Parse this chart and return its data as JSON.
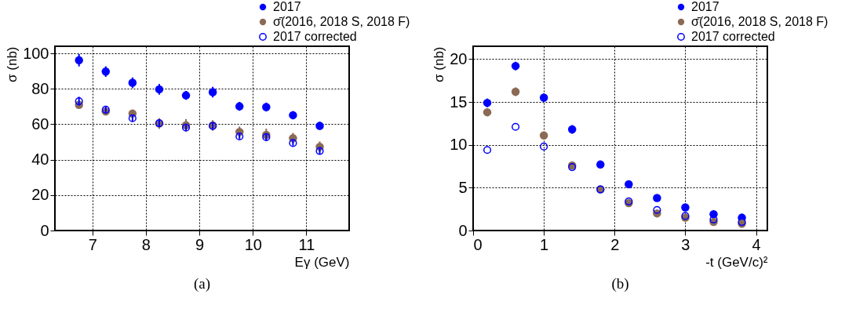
{
  "chart_data": [
    {
      "type": "scatter",
      "xlabel": "Eγ (GeV)",
      "ylabel": "σ (nb)",
      "xlim": [
        6.3,
        11.8
      ],
      "ylim": [
        0,
        104
      ],
      "xticks": [
        7,
        8,
        9,
        10,
        11
      ],
      "yticks": [
        0,
        20,
        40,
        60,
        80,
        100
      ],
      "grid": true,
      "legend": "top right",
      "marker": "circle",
      "annotations": [
        "(a)"
      ],
      "x": [
        6.75,
        7.25,
        7.75,
        8.25,
        8.75,
        9.25,
        9.75,
        10.25,
        10.75,
        11.25
      ],
      "series": [
        {
          "name": "2017",
          "color": "#0000ff",
          "values": [
            96.1,
            89.7,
            83.4,
            79.7,
            76.3,
            78.1,
            70.1,
            69.7,
            65.1,
            59.1
          ],
          "errors": [
            3.5,
            3,
            3,
            3,
            2.5,
            3,
            2.5,
            2.5,
            2.3,
            2.3
          ]
        },
        {
          "name": "σ̄(2016, 2018 S, 2018 F)",
          "color": "#8b6a55",
          "values": [
            70.9,
            67.2,
            66.0,
            60.4,
            59.4,
            59.3,
            55.7,
            54.0,
            52.1,
            47.3
          ],
          "errors": [
            1,
            2,
            1,
            3,
            3.5,
            3,
            3,
            3.5,
            3,
            3
          ]
        },
        {
          "name": "2017 corrected",
          "color": "#0000ff",
          "marker": "circle-open",
          "values": [
            73.0,
            68.2,
            63.4,
            60.6,
            58.1,
            59.0,
            53.1,
            52.7,
            49.4,
            44.9
          ],
          "errors": [
            2.5,
            2,
            2,
            2,
            1.5,
            2,
            1.5,
            2,
            1.5,
            1.5
          ]
        }
      ]
    },
    {
      "type": "scatter",
      "xlabel": "-t (GeV/c)²",
      "ylabel": "σ (nb)",
      "xlim": [
        0,
        4.16
      ],
      "ylim": [
        0,
        21.5
      ],
      "xticks": [
        0,
        1,
        2,
        3,
        4
      ],
      "yticks": [
        0,
        5,
        10,
        15,
        20
      ],
      "grid": true,
      "legend": "top right",
      "marker": "circle",
      "annotations": [
        "(b)"
      ],
      "x": [
        0.2,
        0.6,
        1.0,
        1.4,
        1.8,
        2.2,
        2.6,
        3.0,
        3.4,
        3.8
      ],
      "series": [
        {
          "name": "2017",
          "color": "#0000ff",
          "values": [
            14.9,
            19.2,
            15.5,
            11.8,
            7.7,
            5.4,
            3.8,
            2.7,
            1.9,
            1.5
          ],
          "errors": [
            0.5,
            0.5,
            0.5,
            0.5,
            0.4,
            0.2,
            0.2,
            0.2,
            0.2,
            0.2
          ]
        },
        {
          "name": "σ̄(2016, 2018 S, 2018 F)",
          "color": "#8b6a55",
          "values": [
            13.8,
            16.2,
            11.1,
            7.6,
            4.8,
            3.2,
            2.0,
            1.5,
            1.0,
            0.8
          ],
          "errors": [
            0.4,
            0.5,
            0.2,
            0.2,
            0.2,
            0.1,
            0.1,
            0.1,
            0.1,
            0.1
          ]
        },
        {
          "name": "2017 corrected",
          "color": "#0000ff",
          "marker": "circle-open",
          "values": [
            9.4,
            12.1,
            9.8,
            7.4,
            4.8,
            3.4,
            2.4,
            1.7,
            1.3,
            1.0
          ]
        }
      ]
    }
  ]
}
